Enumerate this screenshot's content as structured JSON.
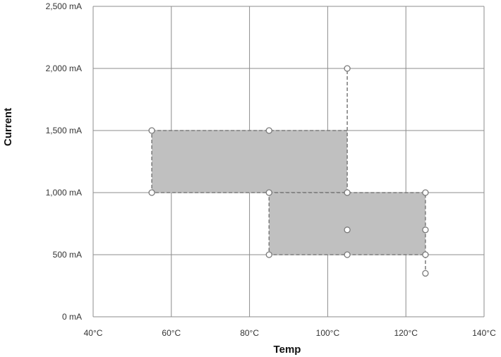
{
  "chart_data": {
    "type": "scatter",
    "xlabel": "Temp",
    "ylabel": "Current",
    "xlim": [
      40,
      140
    ],
    "ylim": [
      0,
      2500
    ],
    "x_ticks": [
      40,
      60,
      80,
      100,
      120,
      140
    ],
    "x_tick_labels": [
      "40°C",
      "60°C",
      "80°C",
      "100°C",
      "120°C",
      "140°C"
    ],
    "y_ticks": [
      0,
      500,
      1000,
      1500,
      2000,
      2500
    ],
    "y_tick_labels": [
      "0 mA",
      "500 mA",
      "1,000 mA",
      "1,500 mA",
      "2,000 mA",
      "2,500 mA"
    ],
    "grid": true,
    "regions": [
      {
        "x": [
          55,
          105
        ],
        "y": [
          1000,
          1500
        ],
        "fill": "#c0c0c0"
      },
      {
        "x": [
          85,
          125
        ],
        "y": [
          500,
          1000
        ],
        "fill": "#c0c0c0"
      }
    ],
    "dashed_lines": [
      {
        "x": [
          105,
          105
        ],
        "y": [
          1500,
          2000
        ]
      },
      {
        "x": [
          125,
          125
        ],
        "y": [
          500,
          350
        ]
      }
    ],
    "points": [
      {
        "x": 55,
        "y": 1500
      },
      {
        "x": 85,
        "y": 1500
      },
      {
        "x": 55,
        "y": 1000
      },
      {
        "x": 85,
        "y": 1000
      },
      {
        "x": 105,
        "y": 2000
      },
      {
        "x": 105,
        "y": 1000
      },
      {
        "x": 105,
        "y": 700
      },
      {
        "x": 105,
        "y": 500
      },
      {
        "x": 85,
        "y": 500
      },
      {
        "x": 125,
        "y": 1000
      },
      {
        "x": 125,
        "y": 700
      },
      {
        "x": 125,
        "y": 500
      },
      {
        "x": 125,
        "y": 350
      }
    ],
    "colors": {
      "grid": "#8c8c8c",
      "region_fill": "#c0c0c0",
      "dash": "#7a7a7a",
      "marker": "#7a7a7a"
    }
  }
}
